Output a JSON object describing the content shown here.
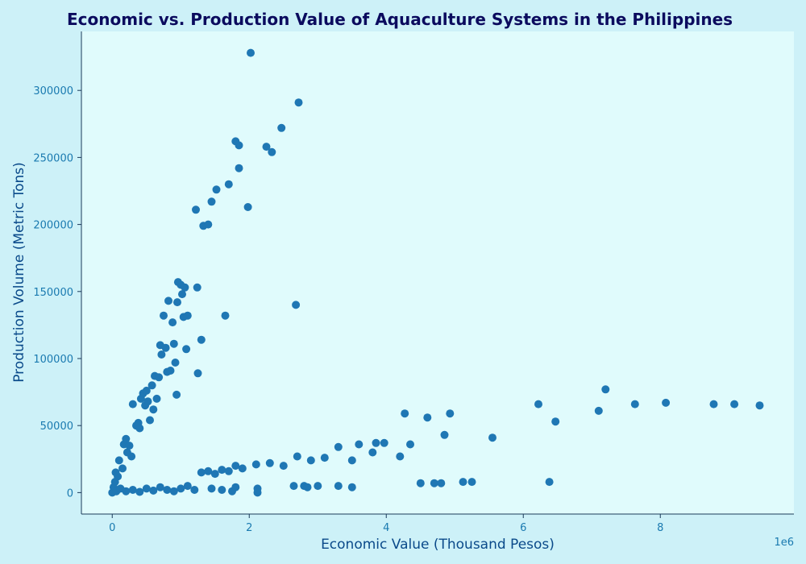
{
  "colors": {
    "background": "#cdf1f8",
    "plot_background": "#e0fbfc",
    "marker": "#1f77b4",
    "title": "#0b0b5e"
  },
  "chart_data": {
    "type": "scatter",
    "title": "Economic vs. Production Value of Aquaculture Systems in the Philippines",
    "xlabel": "Economic Value (Thousand Pesos)",
    "ylabel": "Production Volume (Metric Tons)",
    "x_offset_label": "1e6",
    "x_scale": 1000000,
    "xlim": [
      -0.45,
      9.95
    ],
    "ylim": [
      -16000,
      344000
    ],
    "x_ticks": [
      0,
      2,
      4,
      6,
      8
    ],
    "x_tick_labels": [
      "0",
      "2",
      "4",
      "6",
      "8"
    ],
    "y_ticks": [
      0,
      50000,
      100000,
      150000,
      200000,
      250000,
      300000
    ],
    "y_tick_labels": [
      "0",
      "50000",
      "100000",
      "150000",
      "200000",
      "250000",
      "300000"
    ],
    "grid": false,
    "points": [
      [
        0,
        0
      ],
      [
        0.02,
        4000
      ],
      [
        0.04,
        8000
      ],
      [
        0.05,
        15000
      ],
      [
        0.06,
        1000
      ],
      [
        0.08,
        12000
      ],
      [
        0.1,
        24000
      ],
      [
        0.12,
        3000
      ],
      [
        0.15,
        18000
      ],
      [
        0.17,
        36000
      ],
      [
        0.2,
        40000
      ],
      [
        0.22,
        30000
      ],
      [
        0.25,
        35000
      ],
      [
        0.28,
        27000
      ],
      [
        0.3,
        66000
      ],
      [
        0.35,
        50000
      ],
      [
        0.38,
        52000
      ],
      [
        0.4,
        48000
      ],
      [
        0.42,
        70000
      ],
      [
        0.45,
        74000
      ],
      [
        0.48,
        65000
      ],
      [
        0.5,
        76000
      ],
      [
        0.52,
        68000
      ],
      [
        0.55,
        54000
      ],
      [
        0.58,
        80000
      ],
      [
        0.6,
        62000
      ],
      [
        0.62,
        87000
      ],
      [
        0.65,
        70000
      ],
      [
        0.68,
        86000
      ],
      [
        0.7,
        110000
      ],
      [
        0.72,
        103000
      ],
      [
        0.75,
        132000
      ],
      [
        0.78,
        108000
      ],
      [
        0.8,
        90000
      ],
      [
        0.82,
        143000
      ],
      [
        0.85,
        91000
      ],
      [
        0.88,
        127000
      ],
      [
        0.9,
        111000
      ],
      [
        0.92,
        97000
      ],
      [
        0.94,
        73000
      ],
      [
        0.95,
        142000
      ],
      [
        0.96,
        157000
      ],
      [
        1.0,
        155000
      ],
      [
        1.02,
        148000
      ],
      [
        1.04,
        131000
      ],
      [
        1.06,
        153000
      ],
      [
        1.08,
        107000
      ],
      [
        1.1,
        132000
      ],
      [
        1.24,
        153000
      ],
      [
        1.25,
        89000
      ],
      [
        1.3,
        114000
      ],
      [
        1.22,
        211000
      ],
      [
        1.33,
        199000
      ],
      [
        1.4,
        200000
      ],
      [
        1.45,
        217000
      ],
      [
        1.52,
        226000
      ],
      [
        1.65,
        132000
      ],
      [
        1.7,
        230000
      ],
      [
        1.8,
        262000
      ],
      [
        1.85,
        259000
      ],
      [
        1.85,
        242000
      ],
      [
        1.98,
        213000
      ],
      [
        2.02,
        328000
      ],
      [
        2.25,
        258000
      ],
      [
        2.33,
        254000
      ],
      [
        2.47,
        272000
      ],
      [
        2.72,
        291000
      ],
      [
        2.68,
        140000
      ],
      [
        0.2,
        1000
      ],
      [
        0.3,
        2000
      ],
      [
        0.4,
        500
      ],
      [
        0.5,
        3000
      ],
      [
        0.6,
        1500
      ],
      [
        0.7,
        4000
      ],
      [
        0.8,
        2000
      ],
      [
        0.9,
        1000
      ],
      [
        1.0,
        3000
      ],
      [
        1.1,
        5000
      ],
      [
        1.2,
        2000
      ],
      [
        1.3,
        15000
      ],
      [
        1.4,
        16000
      ],
      [
        1.5,
        14000
      ],
      [
        1.6,
        17000
      ],
      [
        1.7,
        16000
      ],
      [
        1.8,
        20000
      ],
      [
        1.9,
        18000
      ],
      [
        2.1,
        21000
      ],
      [
        2.3,
        22000
      ],
      [
        2.5,
        20000
      ],
      [
        2.7,
        27000
      ],
      [
        2.9,
        24000
      ],
      [
        3.1,
        26000
      ],
      [
        3.3,
        34000
      ],
      [
        3.5,
        24000
      ],
      [
        3.6,
        36000
      ],
      [
        3.8,
        30000
      ],
      [
        3.85,
        37000
      ],
      [
        3.97,
        37000
      ],
      [
        4.2,
        27000
      ],
      [
        4.27,
        59000
      ],
      [
        4.35,
        36000
      ],
      [
        4.6,
        56000
      ],
      [
        4.85,
        43000
      ],
      [
        4.93,
        59000
      ],
      [
        5.55,
        41000
      ],
      [
        6.22,
        66000
      ],
      [
        6.47,
        53000
      ],
      [
        7.1,
        61000
      ],
      [
        7.2,
        77000
      ],
      [
        7.63,
        66000
      ],
      [
        8.08,
        67000
      ],
      [
        8.78,
        66000
      ],
      [
        9.08,
        66000
      ],
      [
        9.45,
        65000
      ],
      [
        1.45,
        3000
      ],
      [
        1.6,
        2000
      ],
      [
        1.75,
        1000
      ],
      [
        1.8,
        4000
      ],
      [
        2.12,
        3000
      ],
      [
        2.12,
        0
      ],
      [
        2.65,
        5000
      ],
      [
        2.8,
        5000
      ],
      [
        2.85,
        4000
      ],
      [
        3.0,
        5000
      ],
      [
        3.3,
        5000
      ],
      [
        3.5,
        4000
      ],
      [
        4.5,
        7000
      ],
      [
        4.7,
        7000
      ],
      [
        4.8,
        7000
      ],
      [
        5.12,
        8000
      ],
      [
        5.25,
        8000
      ],
      [
        6.38,
        8000
      ]
    ]
  }
}
